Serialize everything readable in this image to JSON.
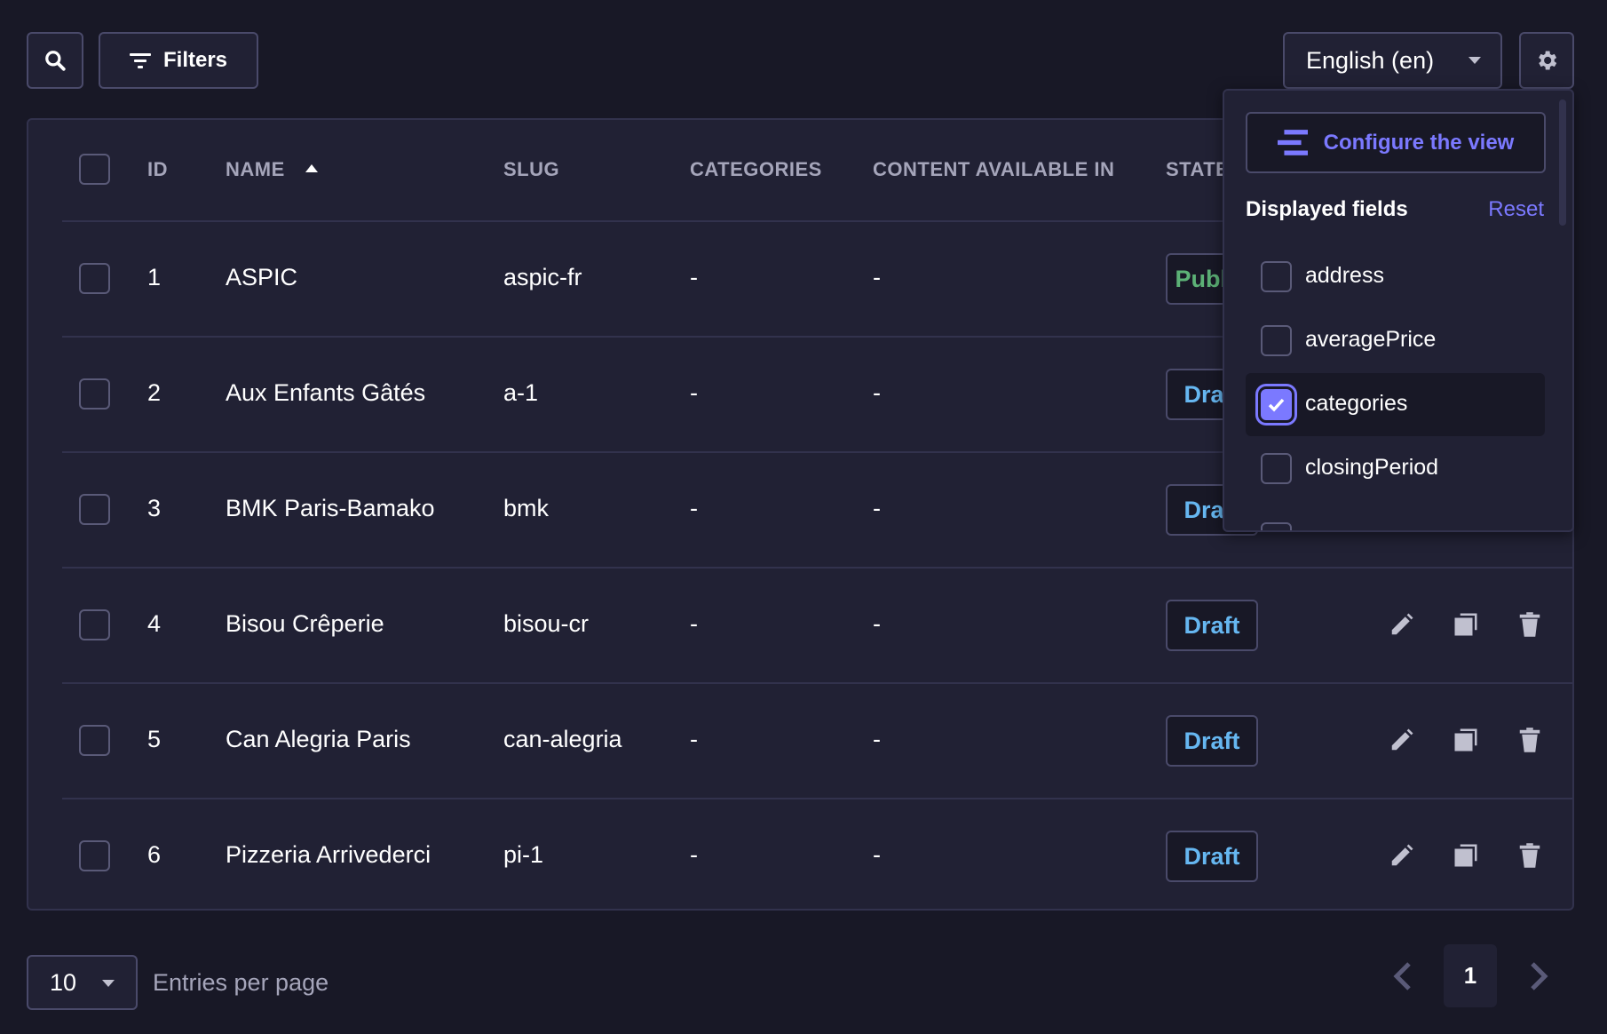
{
  "toolbar": {
    "search_icon": "search-icon",
    "filters_label": "Filters",
    "locale": "English (en)",
    "settings_icon": "gear-icon"
  },
  "table": {
    "headers": {
      "id": "ID",
      "name": "NAME",
      "slug": "SLUG",
      "categories": "CATEGORIES",
      "content_available_in": "CONTENT AVAILABLE IN",
      "state": "STATE"
    },
    "sort": {
      "column": "name",
      "direction": "ascending"
    },
    "rows": [
      {
        "id": "1",
        "name": "ASPIC",
        "slug": "aspic-fr",
        "categories": "-",
        "content_available_in": "-",
        "state": "Published"
      },
      {
        "id": "2",
        "name": "Aux Enfants Gâtés",
        "slug": "a-1",
        "categories": "-",
        "content_available_in": "-",
        "state": "Draft"
      },
      {
        "id": "3",
        "name": "BMK Paris-Bamako",
        "slug": "bmk",
        "categories": "-",
        "content_available_in": "-",
        "state": "Draft"
      },
      {
        "id": "4",
        "name": "Bisou Crêperie",
        "slug": "bisou-cr",
        "categories": "-",
        "content_available_in": "-",
        "state": "Draft"
      },
      {
        "id": "5",
        "name": "Can Alegria Paris",
        "slug": "can-alegria",
        "categories": "-",
        "content_available_in": "-",
        "state": "Draft"
      },
      {
        "id": "6",
        "name": "Pizzeria Arrivederci",
        "slug": "pi-1",
        "categories": "-",
        "content_available_in": "-",
        "state": "Draft"
      }
    ]
  },
  "popover": {
    "configure_label": "Configure the view",
    "displayed_fields_label": "Displayed fields",
    "reset_label": "Reset",
    "fields": [
      {
        "label": "address",
        "checked": false
      },
      {
        "label": "averagePrice",
        "checked": false
      },
      {
        "label": "categories",
        "checked": true
      },
      {
        "label": "closingPeriod",
        "checked": false
      }
    ]
  },
  "footer": {
    "page_size": "10",
    "entries_per_page_label": "Entries per page",
    "current_page": "1"
  },
  "colors": {
    "background": "#181826",
    "surface": "#212134",
    "accent": "#7b79ff",
    "draft": "#66b7f1",
    "published": "#5cb176"
  }
}
